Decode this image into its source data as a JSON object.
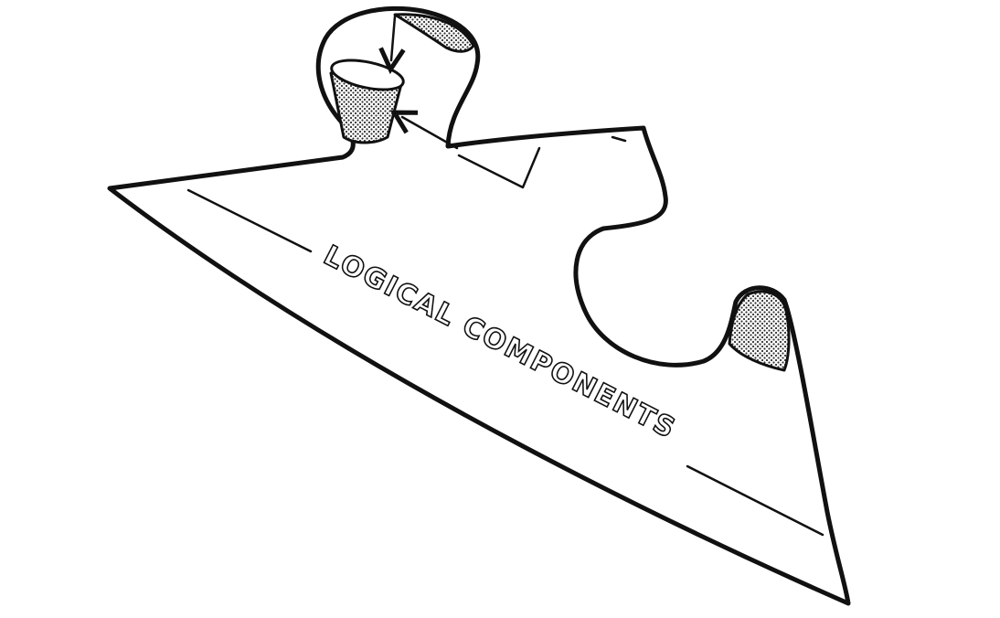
{
  "diagram": {
    "label": "LOGICAL COMPONENTS"
  },
  "colors": {
    "ink": "#111111",
    "paper": "#ffffff",
    "shading": "#444444"
  }
}
